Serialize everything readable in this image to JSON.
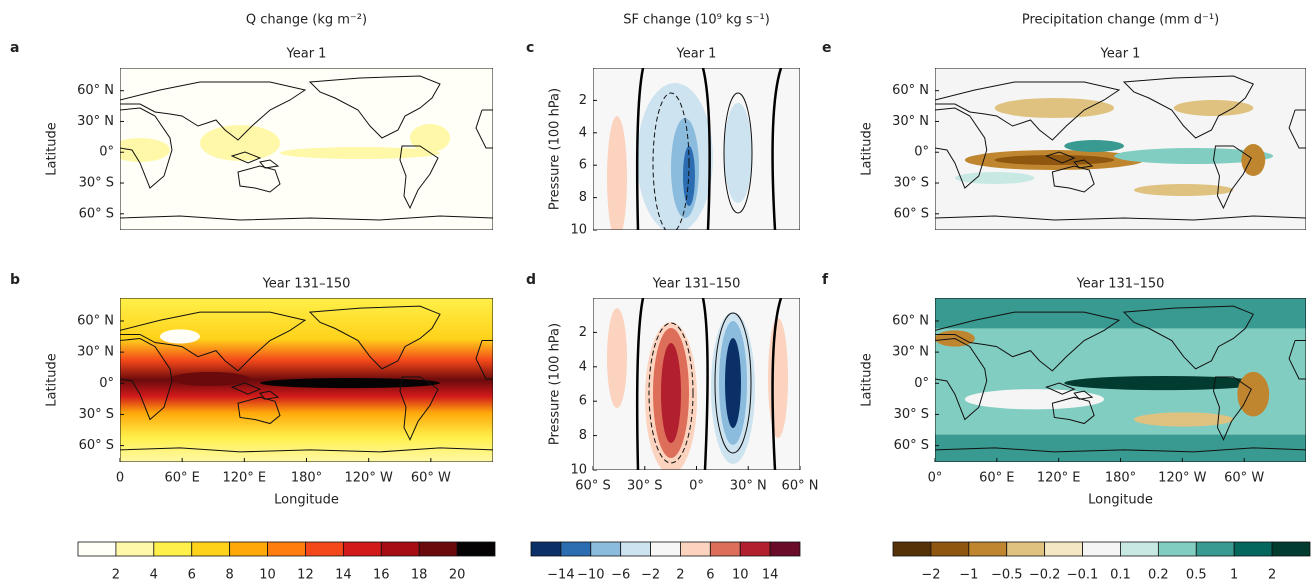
{
  "columns": [
    {
      "title": "Q change (kg m⁻²)",
      "panels": [
        {
          "label": "a",
          "subtitle": "Year 1"
        },
        {
          "label": "b",
          "subtitle": "Year 131–150"
        }
      ],
      "y_label": "Latitude",
      "y_ticks": [
        "60° N",
        "30° N",
        "0°",
        "30° S",
        "60° S"
      ],
      "x_label": "Longitude",
      "x_ticks": [
        "0",
        "60° E",
        "120° E",
        "180°",
        "120° W",
        "60° W"
      ],
      "colorbar": {
        "colors": [
          "#fffff7",
          "#fff8a8",
          "#fff04a",
          "#ffd21a",
          "#ffa80a",
          "#ff7d0c",
          "#f4481a",
          "#d21a1a",
          "#a50d12",
          "#6a0a0c",
          "#050303"
        ],
        "ticks": [
          "2",
          "4",
          "6",
          "8",
          "10",
          "12",
          "14",
          "16",
          "18",
          "20"
        ]
      }
    },
    {
      "title": "SF change (10⁹ kg s⁻¹)",
      "panels": [
        {
          "label": "c",
          "subtitle": "Year 1"
        },
        {
          "label": "d",
          "subtitle": "Year 131–150"
        }
      ],
      "y_label": "Pressure (100 hPa)",
      "y_ticks": [
        "2",
        "4",
        "6",
        "8",
        "10"
      ],
      "x_ticks": [
        "60° S",
        "30° S",
        "0°",
        "30° N",
        "60° N"
      ],
      "colorbar": {
        "colors": [
          "#0b3068",
          "#2c6db2",
          "#8bbcdd",
          "#cde3f0",
          "#f7f7f7",
          "#fbd3bf",
          "#dd6e5a",
          "#b21f2e",
          "#6a0b2a"
        ],
        "ticks": [
          "−14",
          "−10",
          "−6",
          "−2",
          "2",
          "6",
          "10",
          "14"
        ]
      }
    },
    {
      "title": "Precipitation change (mm d⁻¹)",
      "panels": [
        {
          "label": "e",
          "subtitle": "Year 1"
        },
        {
          "label": "f",
          "subtitle": "Year 131–150"
        }
      ],
      "y_label": "Latitude",
      "y_ticks": [
        "60° N",
        "30° N",
        "0°",
        "30° S",
        "60° S"
      ],
      "x_label": "Longitude",
      "x_ticks": [
        "0°",
        "60° E",
        "120° E",
        "180°",
        "120° W",
        "60° W"
      ],
      "colorbar": {
        "colors": [
          "#553207",
          "#8f560f",
          "#bf852f",
          "#dfc27f",
          "#f4e7c4",
          "#f4f5f4",
          "#c8e9e3",
          "#82cdc1",
          "#389a90",
          "#04675e",
          "#023c30"
        ],
        "ticks": [
          "−2",
          "−1",
          "−0.5",
          "−0.2",
          "−0.1",
          "0.1",
          "0.2",
          "0.5",
          "1",
          "2"
        ]
      }
    }
  ]
}
